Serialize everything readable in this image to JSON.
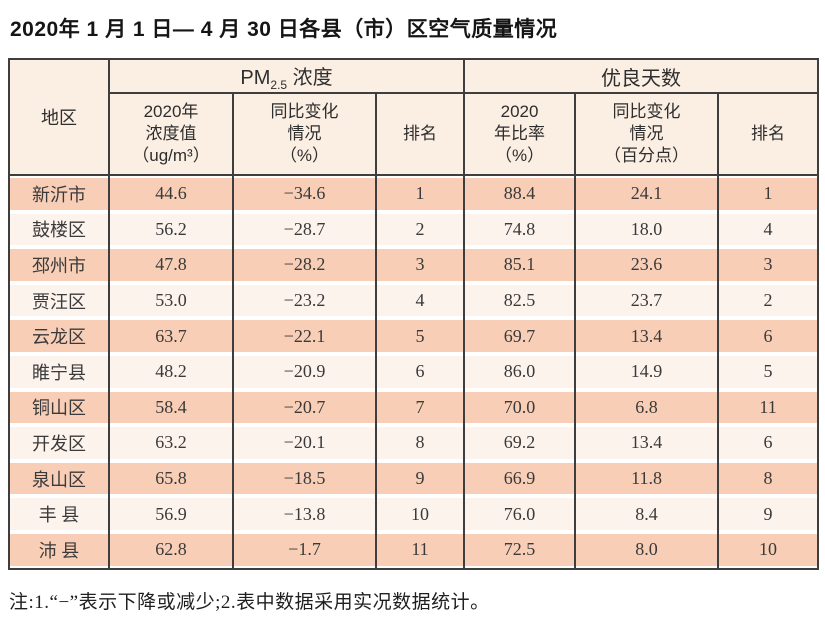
{
  "page": {
    "title": "2020年 1 月 1 日— 4 月 30 日各县（市）区空气质量情况",
    "note": "注:1.“−”表示下降或减少;2.表中数据采用实况数据统计。"
  },
  "table": {
    "region_header": "地区",
    "groups": {
      "pm_prefix": "PM",
      "pm_sub": "2.5",
      "pm_suffix": "浓度",
      "good": "优良天数"
    },
    "sub_headers": {
      "pm_value": "2020年\n浓度值\n（ug/m³）",
      "pm_change": "同比变化\n情况\n（%）",
      "pm_rank": "排名",
      "good_ratio": "2020\n年比率\n（%）",
      "good_change": "同比变化\n情况\n（百分点）",
      "good_rank": "排名"
    },
    "rows": [
      {
        "region": "新沂市",
        "pm_value": "44.6",
        "pm_change": "−34.6",
        "pm_rank": "1",
        "good_ratio": "88.4",
        "good_change": "24.1",
        "good_rank": "1"
      },
      {
        "region": "鼓楼区",
        "pm_value": "56.2",
        "pm_change": "−28.7",
        "pm_rank": "2",
        "good_ratio": "74.8",
        "good_change": "18.0",
        "good_rank": "4"
      },
      {
        "region": "邳州市",
        "pm_value": "47.8",
        "pm_change": "−28.2",
        "pm_rank": "3",
        "good_ratio": "85.1",
        "good_change": "23.6",
        "good_rank": "3"
      },
      {
        "region": "贾汪区",
        "pm_value": "53.0",
        "pm_change": "−23.2",
        "pm_rank": "4",
        "good_ratio": "82.5",
        "good_change": "23.7",
        "good_rank": "2"
      },
      {
        "region": "云龙区",
        "pm_value": "63.7",
        "pm_change": "−22.1",
        "pm_rank": "5",
        "good_ratio": "69.7",
        "good_change": "13.4",
        "good_rank": "6"
      },
      {
        "region": "睢宁县",
        "pm_value": "48.2",
        "pm_change": "−20.9",
        "pm_rank": "6",
        "good_ratio": "86.0",
        "good_change": "14.9",
        "good_rank": "5"
      },
      {
        "region": "铜山区",
        "pm_value": "58.4",
        "pm_change": "−20.7",
        "pm_rank": "7",
        "good_ratio": "70.0",
        "good_change": "6.8",
        "good_rank": "11"
      },
      {
        "region": "开发区",
        "pm_value": "63.2",
        "pm_change": "−20.1",
        "pm_rank": "8",
        "good_ratio": "69.2",
        "good_change": "13.4",
        "good_rank": "6"
      },
      {
        "region": "泉山区",
        "pm_value": "65.8",
        "pm_change": "−18.5",
        "pm_rank": "9",
        "good_ratio": "66.9",
        "good_change": "11.8",
        "good_rank": "8"
      },
      {
        "region": "丰 县",
        "pm_value": "56.9",
        "pm_change": "−13.8",
        "pm_rank": "10",
        "good_ratio": "76.0",
        "good_change": "8.4",
        "good_rank": "9"
      },
      {
        "region": "沛 县",
        "pm_value": "62.8",
        "pm_change": "−1.7",
        "pm_rank": "11",
        "good_ratio": "72.5",
        "good_change": "8.0",
        "good_rank": "10"
      }
    ],
    "colors": {
      "row_odd_band": "#f8ceb6",
      "row_even_band": "#fdf3ed",
      "header_bg": "#fbeee3",
      "border": "#3e3e3e"
    }
  },
  "chart_data": {
    "type": "table",
    "title": "2020年 1 月 1 日— 4 月 30 日各县（市）区空气质量情况",
    "column_groups": [
      "PM2.5 浓度",
      "优良天数"
    ],
    "columns": [
      "地区",
      "2020年浓度值（ug/m³）",
      "同比变化情况（%）",
      "排名",
      "2020年比率（%）",
      "同比变化情况（百分点）",
      "排名"
    ],
    "rows": [
      [
        "新沂市",
        44.6,
        -34.6,
        1,
        88.4,
        24.1,
        1
      ],
      [
        "鼓楼区",
        56.2,
        -28.7,
        2,
        74.8,
        18.0,
        4
      ],
      [
        "邳州市",
        47.8,
        -28.2,
        3,
        85.1,
        23.6,
        3
      ],
      [
        "贾汪区",
        53.0,
        -23.2,
        4,
        82.5,
        23.7,
        2
      ],
      [
        "云龙区",
        63.7,
        -22.1,
        5,
        69.7,
        13.4,
        6
      ],
      [
        "睢宁县",
        48.2,
        -20.9,
        6,
        86.0,
        14.9,
        5
      ],
      [
        "铜山区",
        58.4,
        -20.7,
        7,
        70.0,
        6.8,
        11
      ],
      [
        "开发区",
        63.2,
        -20.1,
        8,
        69.2,
        13.4,
        6
      ],
      [
        "泉山区",
        65.8,
        -18.5,
        9,
        66.9,
        11.8,
        8
      ],
      [
        "丰 县",
        56.9,
        -13.8,
        10,
        76.0,
        8.4,
        9
      ],
      [
        "沛 县",
        62.8,
        -1.7,
        11,
        72.5,
        8.0,
        10
      ]
    ],
    "footnote": "注:1.“−”表示下降或减少;2.表中数据采用实况数据统计。"
  }
}
